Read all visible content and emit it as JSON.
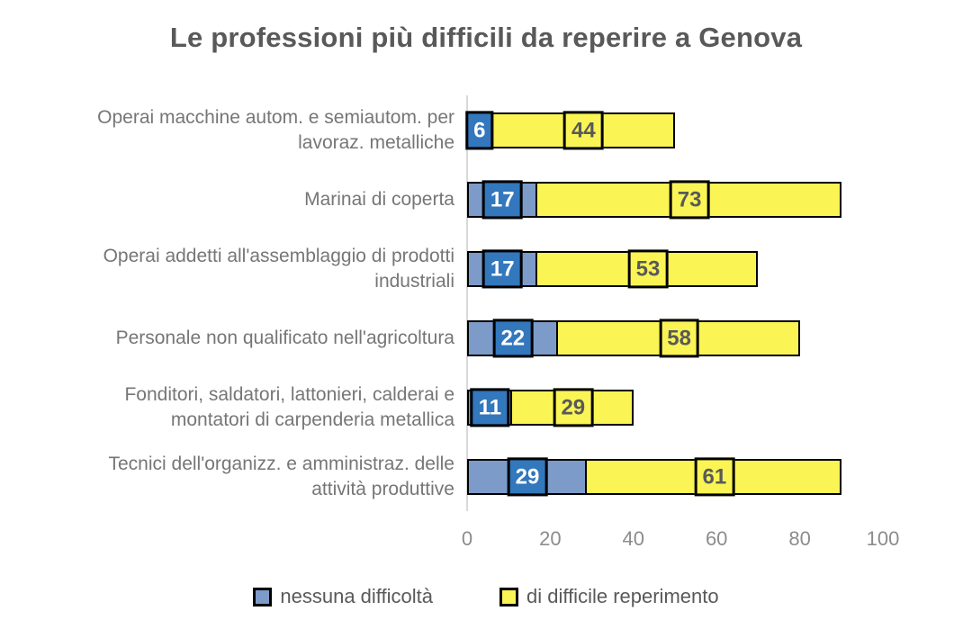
{
  "chart_data": {
    "type": "bar",
    "orientation": "horizontal",
    "stacked": true,
    "title": "Le professioni più difficili da reperire a Genova",
    "categories": [
      "Operai macchine autom. e semiautom. per\nlavoraz. metalliche",
      "Marinai di coperta",
      "Operai addetti all'assemblaggio di prodotti\nindustriali",
      "Personale non qualificato nell'agricoltura",
      "Fonditori, saldatori, lattonieri, calderai e\nmontatori di carpenderia metallica",
      "Tecnici dell'organizz. e amministraz. delle\nattività produttive"
    ],
    "series": [
      {
        "name": "nessuna difficoltà",
        "values": [
          6,
          17,
          17,
          22,
          11,
          29
        ],
        "bar_color": "#7d9bc8",
        "label_box_color": "#3377bd",
        "label_text_color": "#ffffff"
      },
      {
        "name": "di difficile reperimento",
        "values": [
          44,
          73,
          53,
          58,
          29,
          61
        ],
        "bar_color": "#faf455",
        "label_box_color": "#faf455",
        "label_text_color": "#595959"
      }
    ],
    "xlabel": "",
    "ylabel": "",
    "xlim": [
      0,
      100
    ],
    "xticks": [
      0,
      20,
      40,
      60,
      80,
      100
    ],
    "grid": false,
    "legend_position": "bottom",
    "colors": {
      "title_text": "#595959",
      "category_text": "#767676",
      "tick_text": "#8c8c8c",
      "axis_line": "#d9d9d9",
      "bar_border": "#000000"
    }
  }
}
